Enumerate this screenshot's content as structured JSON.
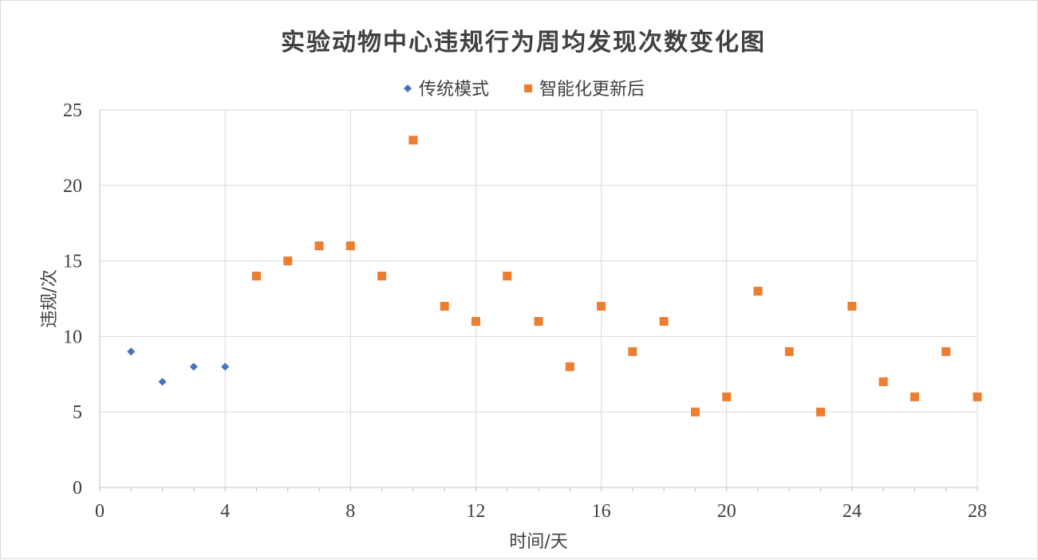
{
  "chart_data": {
    "type": "scatter",
    "title": "实验动物中心违规行为周均发现次数变化图",
    "xlabel": "时间/天",
    "ylabel": "违规/次",
    "xlim": [
      0,
      28
    ],
    "ylim": [
      0,
      25
    ],
    "x_ticks": [
      0,
      4,
      8,
      12,
      16,
      20,
      24,
      28
    ],
    "y_ticks": [
      0,
      5,
      10,
      15,
      20,
      25
    ],
    "grid": true,
    "legend_position": "top",
    "series": [
      {
        "name": "传统模式",
        "marker": "diamond",
        "color": "#4472c4",
        "x": [
          1,
          2,
          3,
          4
        ],
        "y": [
          9,
          7,
          8,
          8
        ]
      },
      {
        "name": "智能化更新后",
        "marker": "square",
        "color": "#ed7d31",
        "x": [
          5,
          6,
          7,
          8,
          9,
          10,
          11,
          12,
          13,
          14,
          15,
          16,
          17,
          18,
          19,
          20,
          21,
          22,
          23,
          24,
          25,
          26,
          27,
          28
        ],
        "y": [
          14,
          15,
          16,
          16,
          14,
          23,
          12,
          11,
          14,
          11,
          8,
          12,
          9,
          11,
          5,
          6,
          13,
          9,
          5,
          12,
          7,
          6,
          9,
          6
        ]
      }
    ]
  }
}
